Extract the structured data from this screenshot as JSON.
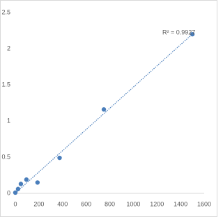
{
  "chart_data": {
    "type": "scatter",
    "x": [
      0,
      23,
      47,
      94,
      188,
      375,
      750,
      1500
    ],
    "values": [
      0.01,
      0.06,
      0.13,
      0.19,
      0.15,
      0.49,
      1.16,
      2.2
    ],
    "color": "#4a7ebb",
    "trendline": "linear",
    "trendline_color": "#4a7ebb",
    "annotation": "R² = 0.9927",
    "xlim": [
      0,
      1600
    ],
    "xticks": [
      0,
      200,
      400,
      600,
      800,
      1000,
      1200,
      1400,
      1600
    ],
    "ylim": [
      0,
      2.5
    ],
    "yticks": [
      0,
      {
        "value": 0.5,
        "label": "0.5"
      },
      1,
      {
        "value": 1.5,
        "label": "1.5"
      },
      2,
      {
        "value": 2.5,
        "label": "2.5"
      }
    ],
    "grid": false
  }
}
